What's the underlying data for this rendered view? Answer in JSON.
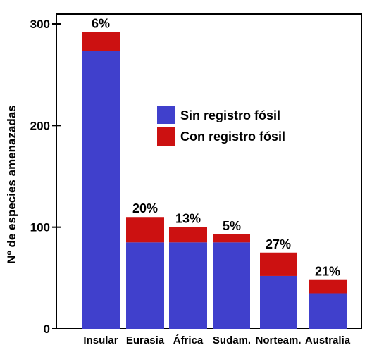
{
  "chart_data": {
    "type": "bar",
    "stacked": true,
    "title": "",
    "xlabel": "",
    "ylabel": "Nº de especies amenazadas",
    "ylim": [
      0,
      300
    ],
    "yticks": [
      0,
      100,
      200,
      300
    ],
    "categories": [
      "Insular",
      "Eurasia",
      "África",
      "Sudam.",
      "Norteam.",
      "Australia"
    ],
    "series": [
      {
        "name": "Sin registro fósil",
        "color": "#4040cc",
        "values": [
          273,
          85,
          85,
          85,
          52,
          35
        ]
      },
      {
        "name": "Con registro fósil",
        "color": "#cc1111",
        "values": [
          19,
          25,
          15,
          8,
          23,
          13
        ]
      }
    ],
    "percent_labels": [
      "6%",
      "20%",
      "13%",
      "5%",
      "27%",
      "21%"
    ],
    "legend_position": "center-right",
    "grid": false
  }
}
